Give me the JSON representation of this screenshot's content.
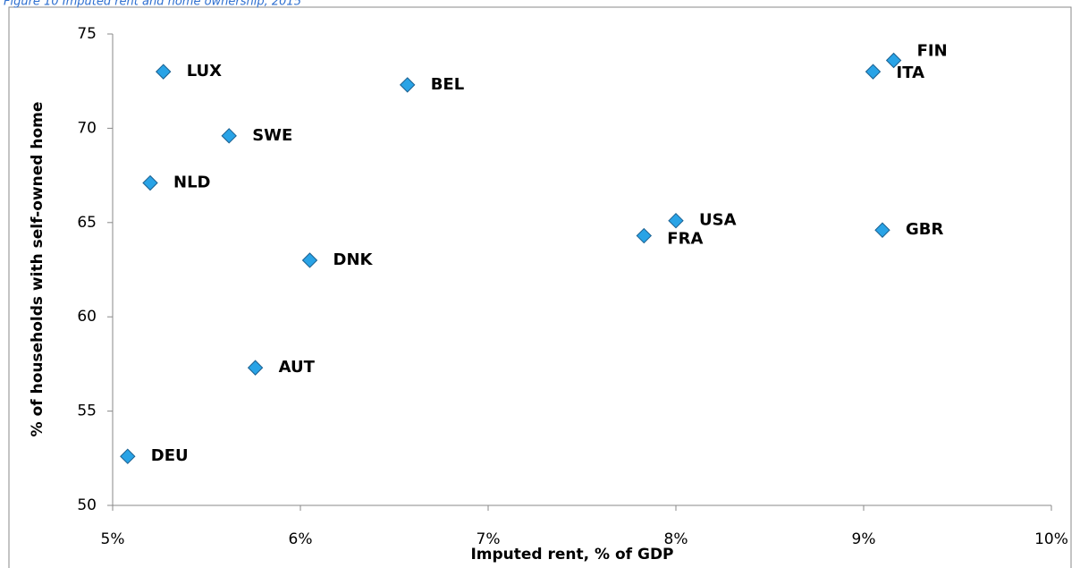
{
  "chart_data": {
    "type": "scatter",
    "title": "Figure 10 Imputed rent and home ownership, 2015",
    "x_label": "Imputed rent, % of GDP",
    "y_label": "% of households with self-owned home",
    "xlim": [
      5,
      10
    ],
    "ylim": [
      50,
      75
    ],
    "xticks": [
      {
        "value": 5,
        "label": "5%"
      },
      {
        "value": 6,
        "label": "6%"
      },
      {
        "value": 7,
        "label": "7%"
      },
      {
        "value": 8,
        "label": "8%"
      },
      {
        "value": 9,
        "label": "9%"
      },
      {
        "value": 10,
        "label": "10%"
      }
    ],
    "yticks": [
      50,
      55,
      60,
      65,
      70,
      75
    ],
    "grid": false,
    "series": [
      {
        "color": "#29a3e6",
        "labels": [
          "LUX",
          "BEL",
          "SWE",
          "NLD",
          "DNK",
          "AUT",
          "DEU",
          "FRA",
          "USA",
          "GBR",
          "ITA",
          "FIN"
        ],
        "x": [
          5.27,
          6.57,
          5.62,
          5.2,
          6.05,
          5.76,
          5.08,
          7.83,
          8.0,
          9.1,
          9.05,
          9.16
        ],
        "y": [
          73.0,
          72.3,
          69.6,
          67.1,
          63.0,
          57.3,
          52.6,
          64.3,
          65.1,
          64.6,
          73.0,
          73.6
        ]
      }
    ]
  }
}
